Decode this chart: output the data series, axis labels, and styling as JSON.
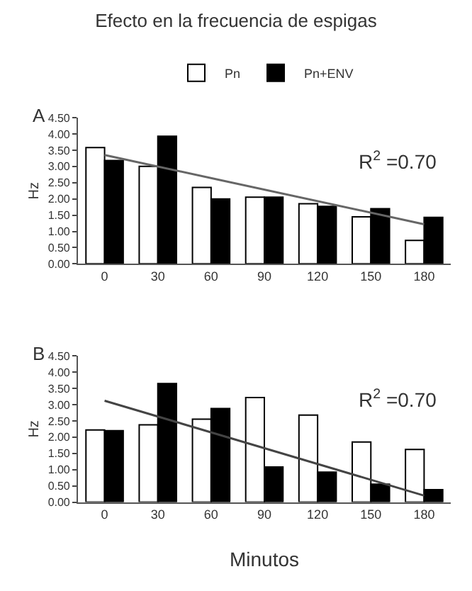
{
  "chart_data": [
    {
      "type": "bar",
      "title": "Efecto en la frecuencia de espigas",
      "ylabel": "Hz",
      "categories": [
        "0",
        "30",
        "60",
        "90",
        "120",
        "150",
        "180"
      ],
      "series": [
        {
          "name": "Pn",
          "color": "#ffffff",
          "values": [
            3.58,
            3.0,
            2.35,
            2.05,
            1.85,
            1.45,
            0.72
          ]
        },
        {
          "name": "Pn+ENV",
          "color": "#000000",
          "values": [
            3.18,
            3.93,
            2.0,
            2.05,
            1.77,
            1.7,
            1.43
          ]
        },
        {
          "type": "line",
          "color": "#666666",
          "x": [
            "0",
            "180"
          ],
          "values": [
            3.35,
            1.22
          ]
        }
      ],
      "ylim": [
        0,
        4.5
      ],
      "yticks": [
        {
          "value": 0,
          "label": "0.00"
        },
        {
          "value": 0.5,
          "label": "0.50"
        },
        {
          "value": 1,
          "label": "1.00"
        },
        {
          "value": 1.5,
          "label": "1.50"
        },
        {
          "value": 2,
          "label": "2.00"
        },
        {
          "value": 2.5,
          "label": "2.50"
        },
        {
          "value": 3,
          "label": "3.00"
        },
        {
          "value": 3.5,
          "label": "3.50"
        },
        {
          "value": 4,
          "label": "4.00"
        },
        {
          "value": 4.5,
          "label": "4.50"
        }
      ],
      "annotations": [
        "A",
        "R$^{2}$ =0.70"
      ],
      "legend": "top"
    },
    {
      "type": "bar",
      "ylabel": "Hz",
      "xlabel": "Minutos",
      "categories": [
        "0",
        "30",
        "60",
        "90",
        "120",
        "150",
        "180"
      ],
      "series": [
        {
          "color": "#ffffff",
          "values": [
            2.22,
            2.38,
            2.55,
            3.22,
            2.68,
            1.85,
            1.62
          ]
        },
        {
          "color": "#000000",
          "values": [
            2.2,
            3.65,
            2.88,
            1.08,
            0.92,
            0.55,
            0.38
          ]
        },
        {
          "type": "line",
          "color": "#444444",
          "x": [
            "0",
            "180"
          ],
          "values": [
            3.12,
            0.2
          ]
        }
      ],
      "ylim": [
        0,
        4.5
      ],
      "yticks": [
        {
          "value": 0,
          "label": "0.00"
        },
        {
          "value": 0.5,
          "label": "0.50"
        },
        {
          "value": 1,
          "label": "1.00"
        },
        {
          "value": 1.5,
          "label": "1.50"
        },
        {
          "value": 2,
          "label": "2.00"
        },
        {
          "value": 2.5,
          "label": "2.50"
        },
        {
          "value": 3,
          "label": "3.00"
        },
        {
          "value": 3.5,
          "label": "3.50"
        },
        {
          "value": 4,
          "label": "4.00"
        },
        {
          "value": 4.5,
          "label": "4.50"
        }
      ],
      "annotations": [
        "B",
        "R$^{2}$ =0.70"
      ],
      "relative": false
    }
  ]
}
